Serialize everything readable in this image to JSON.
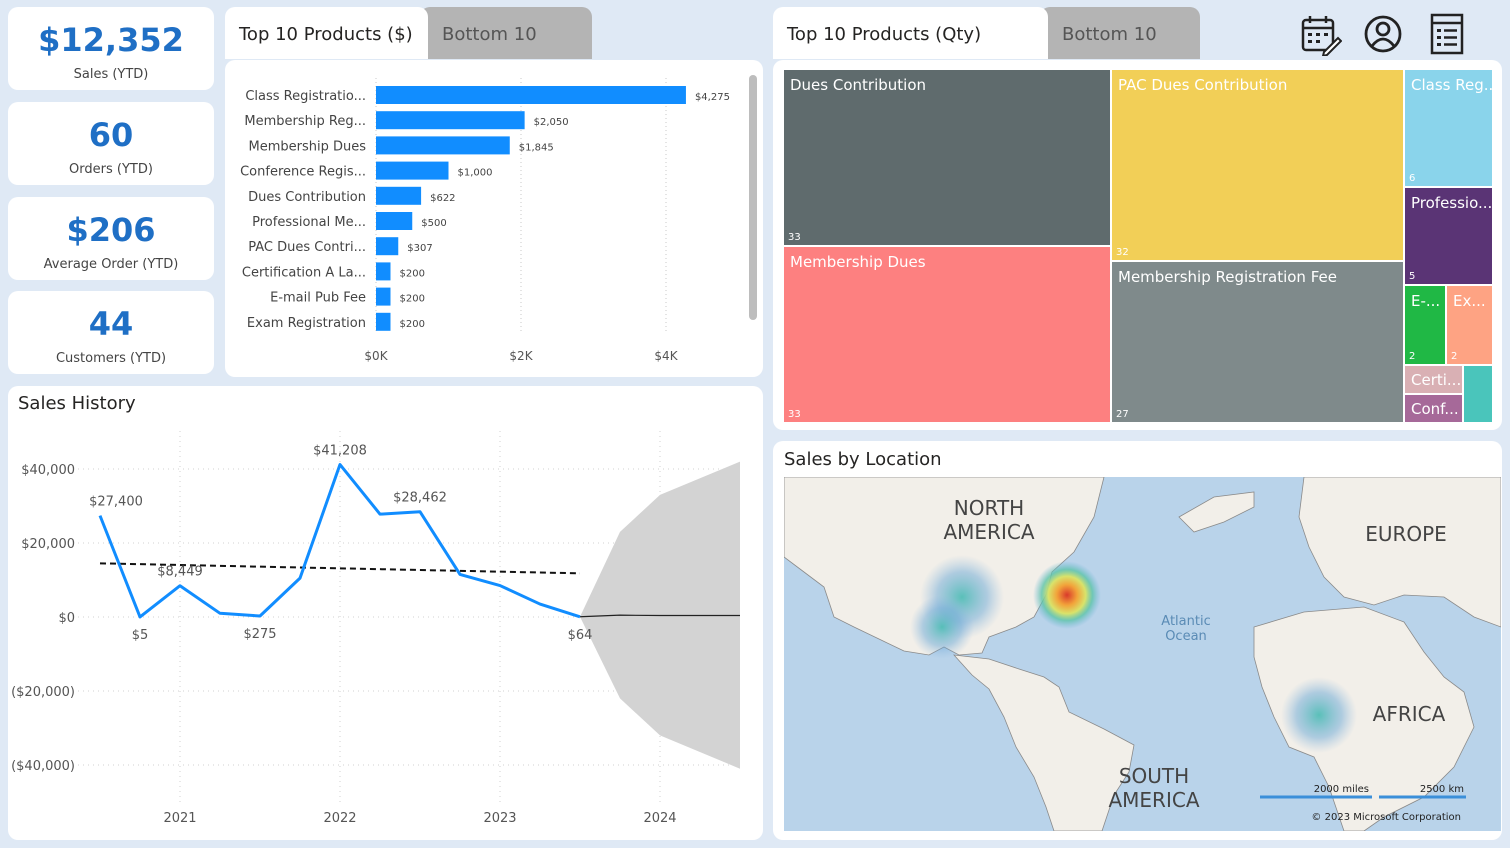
{
  "kpis": [
    {
      "value": "$12,352",
      "label": "Sales (YTD)"
    },
    {
      "value": "60",
      "label": "Orders (YTD)"
    },
    {
      "value": "$206",
      "label": "Average Order (YTD)"
    },
    {
      "value": "44",
      "label": "Customers (YTD)"
    }
  ],
  "product_tabs": {
    "active": "Top 10 Products ($)",
    "inactive": "Bottom 10"
  },
  "qty_tabs": {
    "active": "Top 10 Products (Qty)",
    "inactive": "Bottom 10"
  },
  "toolbar_icons": [
    "calendar-icon",
    "user-icon",
    "report-icon"
  ],
  "colors": {
    "bar": "#118dff",
    "line": "#118dff",
    "forecast_band": "#d3d3d3"
  },
  "chart_data": [
    {
      "type": "bar",
      "title": "Top 10 Products ($)",
      "categories": [
        "Class Registratio...",
        "Membership Reg...",
        "Membership Dues",
        "Conference Regis...",
        "Dues Contribution",
        "Professional Me...",
        "PAC Dues Contri...",
        "Certification A La...",
        "E-mail Pub Fee",
        "Exam Registration"
      ],
      "values": [
        4275,
        2050,
        1845,
        1000,
        622,
        500,
        307,
        200,
        200,
        200
      ],
      "value_labels": [
        "$4,275",
        "$2,050",
        "$1,845",
        "$1,000",
        "$622",
        "$500",
        "$307",
        "$200",
        "$200",
        "$200"
      ],
      "xticks": [
        "$0K",
        "$2K",
        "$4K"
      ],
      "xlim": [
        0,
        4300
      ]
    },
    {
      "type": "line",
      "title": "Sales History",
      "x": [
        2020.5,
        2020.75,
        2021.0,
        2021.25,
        2021.5,
        2021.75,
        2022.0,
        2022.25,
        2022.5,
        2022.75,
        2023.0,
        2023.25,
        2023.5
      ],
      "values": [
        27400,
        5,
        8449,
        1000,
        275,
        10500,
        41208,
        27800,
        28462,
        11500,
        8500,
        3500,
        64
      ],
      "point_labels": [
        {
          "index": 0,
          "text": "$27,400",
          "pos": "above"
        },
        {
          "index": 1,
          "text": "$5",
          "pos": "below"
        },
        {
          "index": 2,
          "text": "$8,449",
          "pos": "above"
        },
        {
          "index": 4,
          "text": "$275",
          "pos": "below"
        },
        {
          "index": 6,
          "text": "$41,208",
          "pos": "above"
        },
        {
          "index": 8,
          "text": "$28,462",
          "pos": "above"
        },
        {
          "index": 12,
          "text": "$64",
          "pos": "below"
        }
      ],
      "trend": {
        "start": [
          2020.5,
          14500
        ],
        "end": [
          2023.5,
          11800
        ]
      },
      "forecast": {
        "x": [
          2023.5,
          2023.75,
          2024.0,
          2024.5
        ],
        "center": [
          64,
          500,
          400,
          400
        ],
        "upper": [
          64,
          23000,
          33000,
          42000
        ],
        "lower": [
          64,
          -22000,
          -32000,
          -41000
        ]
      },
      "yticks": [
        40000,
        20000,
        0,
        -20000,
        -40000
      ],
      "ytick_labels": [
        "$40,000",
        "$20,000",
        "$0",
        "($20,000)",
        "($40,000)"
      ],
      "xticks": [
        2021,
        2022,
        2023,
        2024
      ],
      "xtick_labels": [
        "2021",
        "2022",
        "2023",
        "2024"
      ],
      "ylim": [
        -45000,
        45000
      ],
      "xlim": [
        2020.4,
        2024.5
      ]
    }
  ],
  "treemap": {
    "items": [
      {
        "name": "Dues Contribution",
        "qty": "33",
        "color": "#5f6b6d"
      },
      {
        "name": "PAC Dues Contribution",
        "qty": "32",
        "color": "#f2cf57"
      },
      {
        "name": "Class Reg...",
        "qty": "6",
        "color": "#8ad4eb"
      },
      {
        "name": "Professio...",
        "qty": "5",
        "color": "#5a3475"
      },
      {
        "name": "Membership Dues",
        "qty": "33",
        "color": "#fd8080"
      },
      {
        "name": "Membership Registration Fee",
        "qty": "27",
        "color": "#7f8a8b"
      },
      {
        "name": "E-...",
        "qty": "2",
        "color": "#20b845"
      },
      {
        "name": "Ex...",
        "qty": "2",
        "color": "#fea383"
      },
      {
        "name": "Certi...",
        "qty": "",
        "color": "#d9b0b4"
      },
      {
        "name": "Conf...",
        "qty": "",
        "color": "#a66999"
      },
      {
        "name": "",
        "qty": "",
        "color": "#4ac5bb"
      }
    ]
  },
  "map": {
    "title": "Sales by Location",
    "labels": {
      "north_america": "NORTH AMERICA",
      "europe": "EUROPE",
      "africa": "AFRICA",
      "south_america": "SOUTH AMERICA",
      "ocean": "Atlantic Ocean"
    },
    "scale_miles": "2000 miles",
    "scale_km": "2500 km",
    "copyright": "© 2023 Microsoft Corporation"
  }
}
